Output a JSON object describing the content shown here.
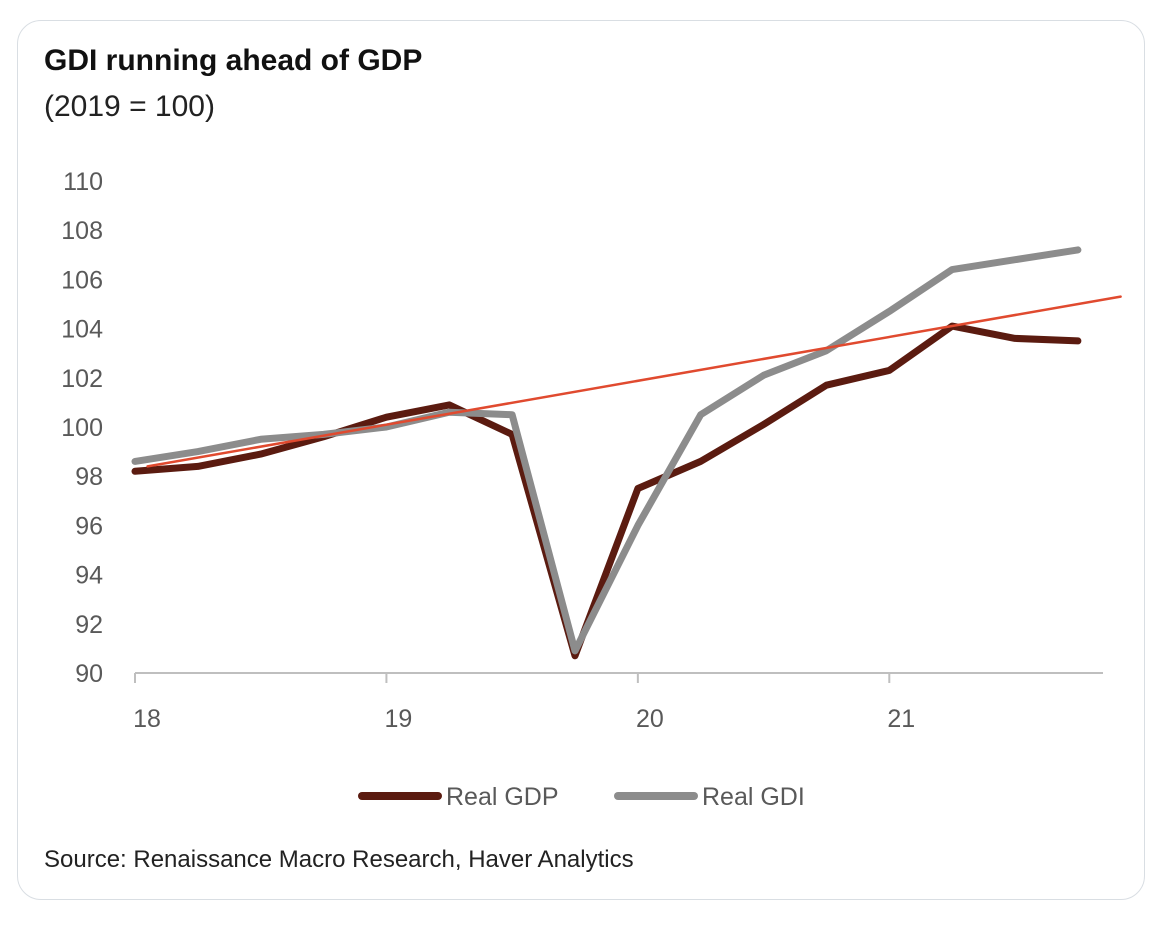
{
  "header": {
    "title": "GDI running ahead of GDP",
    "subtitle": "(2019 = 100)"
  },
  "footer": {
    "source": "Source: Renaissance Macro Research, Haver Analytics"
  },
  "chart_data": {
    "type": "line",
    "title": "GDI running ahead of GDP",
    "subtitle": "(2019 = 100)",
    "xlabel": "",
    "ylabel": "",
    "x_ticks": [
      "18",
      "19",
      "20",
      "21"
    ],
    "x_tick_values": [
      2018.0,
      2019.0,
      2020.0,
      2021.0
    ],
    "y_ticks": [
      "110",
      "108",
      "106",
      "104",
      "102",
      "100",
      "98",
      "96",
      "94",
      "92",
      "90"
    ],
    "xlim": [
      2018.0,
      2021.85
    ],
    "ylim": [
      90,
      110
    ],
    "legend_position": "bottom-center",
    "x": [
      2018.0,
      2018.25,
      2018.5,
      2018.75,
      2019.0,
      2019.25,
      2019.5,
      2019.75,
      2020.0,
      2020.25,
      2020.5,
      2020.75,
      2021.0,
      2021.25,
      2021.5,
      2021.75
    ],
    "series": [
      {
        "name": "Real GDP",
        "color": "#5b1b10",
        "values": [
          98.2,
          98.4,
          98.9,
          99.6,
          100.4,
          100.9,
          99.7,
          90.7,
          97.5,
          98.6,
          100.1,
          101.7,
          102.3,
          104.1,
          103.6,
          103.5
        ]
      },
      {
        "name": "Real GDI",
        "color": "#8c8c8c",
        "values": [
          98.6,
          99.0,
          99.5,
          99.7,
          100.0,
          100.6,
          100.5,
          90.9,
          96.0,
          100.5,
          102.1,
          103.1,
          104.7,
          106.4,
          106.8,
          107.2
        ]
      }
    ],
    "trend_line": {
      "name": "Trend",
      "color": "#e04a2f",
      "x": [
        2018.05,
        2021.92
      ],
      "values": [
        98.4,
        105.3
      ]
    },
    "legend": [
      "Real GDP",
      "Real GDI"
    ]
  }
}
